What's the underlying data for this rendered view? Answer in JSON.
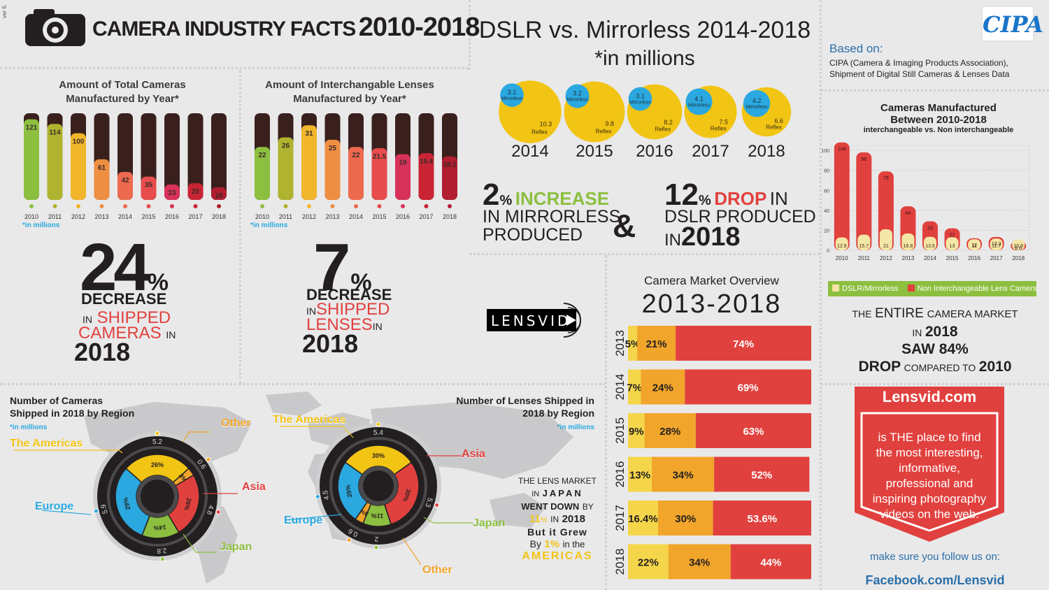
{
  "version_tag": "ver 6.",
  "header": {
    "title_a": "CAMERA INDUSTRY FACTS",
    "title_b": "2010-2018"
  },
  "colors": {
    "dark_bar": "#3a201d",
    "red": "#e1413e",
    "yellow": "#f2c414",
    "orange": "#f1a52a",
    "green": "#8cbf3f",
    "blue": "#2aa8df",
    "bg": "#e9e9ea"
  },
  "chart_data": [
    {
      "id": "total-cameras",
      "type": "bar",
      "title": "Amount of Total Cameras Manufactured by Year*",
      "note": "*in millions",
      "categories": [
        "2010",
        "2011",
        "2012",
        "2013",
        "2014",
        "2015",
        "2016",
        "2017",
        "2018"
      ],
      "values": [
        121,
        114,
        100,
        61,
        42,
        35,
        23,
        25,
        19
      ],
      "bar_colors": [
        "#8cbf3f",
        "#afb32f",
        "#f2b62c",
        "#ee8e42",
        "#ed6a4f",
        "#e74d4d",
        "#d8325a",
        "#c92434",
        "#b01e2f"
      ],
      "ylim": [
        0,
        130
      ]
    },
    {
      "id": "lenses",
      "type": "bar",
      "title": "Amount of Interchangable Lenses Manufactured by Year*",
      "note": "*in millions",
      "categories": [
        "2010",
        "2011",
        "2012",
        "2013",
        "2014",
        "2015",
        "2016",
        "2017",
        "2018"
      ],
      "values": [
        22,
        26,
        31,
        25,
        22,
        21.5,
        19,
        19.4,
        18.1
      ],
      "value_labels": [
        "22",
        "26",
        "31",
        "25",
        "22",
        "21.5",
        "19",
        "19.4",
        "18.1"
      ],
      "bar_colors": [
        "#8cbf3f",
        "#afb32f",
        "#f2b62c",
        "#ee8e42",
        "#ed6a4f",
        "#e74d4d",
        "#d8325a",
        "#c92434",
        "#b01e2f"
      ],
      "ylim": [
        0,
        36
      ]
    },
    {
      "id": "dslr-vs-mirrorless",
      "type": "bubble",
      "title": "DSLR vs. Mirrorless 2014-2018",
      "subtitle": "*in millions",
      "categories": [
        "2014",
        "2015",
        "2016",
        "2017",
        "2018"
      ],
      "series": [
        {
          "name": "Mirrorless",
          "values": [
            3.1,
            3.2,
            3.1,
            4.1,
            4.2
          ]
        },
        {
          "name": "Reflex",
          "values": [
            10.3,
            9.8,
            8.2,
            7.5,
            6.6
          ]
        }
      ]
    },
    {
      "id": "market-overview",
      "type": "bar",
      "orientation": "horizontal-stacked",
      "title_a": "Camera Market Overview",
      "title_b": "2013-2018",
      "categories": [
        "2013",
        "2014",
        "2015",
        "2016",
        "2017",
        "2018"
      ],
      "series": [
        {
          "values": [
            5,
            7,
            9,
            13,
            16.4,
            22
          ],
          "labels": [
            "5%",
            "7%",
            "9%",
            "13%",
            "16.4%",
            "22%"
          ],
          "color": "#f5d64a"
        },
        {
          "values": [
            21,
            24,
            28,
            34,
            30,
            34
          ],
          "labels": [
            "21%",
            "24%",
            "28%",
            "34%",
            "30%",
            "34%"
          ],
          "color": "#f1a52a"
        },
        {
          "values": [
            74,
            69,
            63,
            52,
            53.6,
            44
          ],
          "labels": [
            "74%",
            "69%",
            "63%",
            "52%",
            "53.6%",
            "44%"
          ],
          "color": "#e1413e"
        }
      ]
    },
    {
      "id": "interchangeable",
      "type": "bar",
      "title_a": "Cameras Manufactured",
      "title_b": "Between 2010-2018",
      "title_c": "interchangeable vs. Non interchangeable",
      "categories": [
        "2010",
        "2011",
        "2012",
        "2013",
        "2014",
        "2015",
        "2016",
        "2017",
        "2018"
      ],
      "yticks": [
        "0",
        "20",
        "40",
        "60",
        "80",
        "100"
      ],
      "ylim": [
        0,
        105
      ],
      "series": [
        {
          "name": "DSLR/Mirrorless",
          "values": [
            12.9,
            15.7,
            21,
            16.8,
            13.5,
            13,
            11,
            11.7,
            10.8
          ],
          "labels": [
            "12.9",
            "15.7",
            "21",
            "16.8",
            "13.5",
            "13",
            "11",
            "11.7",
            "10.8"
          ],
          "color": "#f4e6a6"
        },
        {
          "name": "Non Interchangeable Lens Camers",
          "values": [
            108,
            98,
            79,
            44,
            29,
            22,
            12,
            13.3,
            8.6
          ],
          "labels": [
            "108",
            "98",
            "79",
            "44",
            "29",
            "22",
            "12",
            "13.3",
            "8.6"
          ],
          "color": "#e1413e"
        }
      ]
    },
    {
      "id": "cameras-by-region",
      "type": "pie",
      "title": "Number of Cameras Shipped in 2018 by Region",
      "note": "*in millions",
      "slices": [
        {
          "label": "The Americas",
          "value": 5.2,
          "percent": "26%",
          "color": "#f2c414"
        },
        {
          "label": "Other",
          "value": 0.6,
          "percent": "3%",
          "color": "#f1a52a"
        },
        {
          "label": "Asia",
          "value": 4.8,
          "percent": "26%",
          "color": "#e1413e"
        },
        {
          "label": "Japan",
          "value": 2.8,
          "percent": "14%",
          "color": "#8cbf3f"
        },
        {
          "label": "Europe",
          "value": 5.9,
          "percent": "29%",
          "color": "#2aa8df"
        }
      ]
    },
    {
      "id": "lenses-by-region",
      "type": "pie",
      "title": "Number of Lenses Shipped in 2018 by Region",
      "note": "*in millions",
      "slices": [
        {
          "label": "The Americas",
          "value": 5.4,
          "percent": "30%",
          "color": "#f2c414"
        },
        {
          "label": "Asia",
          "value": 5.3,
          "percent": "30%",
          "color": "#e1413e"
        },
        {
          "label": "Japan",
          "value": 2,
          "percent": "11%",
          "color": "#8cbf3f"
        },
        {
          "label": "Other",
          "value": 0.6,
          "percent": "3%",
          "color": "#f1a52a"
        },
        {
          "label": "Europe",
          "value": 4.5,
          "percent": "25%",
          "color": "#2aa8df"
        }
      ]
    }
  ],
  "stat_cameras": {
    "num": "24",
    "pct": "%",
    "l1": "DECREASE",
    "in": "IN",
    "l2": "SHIPPED",
    "l3": "CAMERAS",
    "in2": "IN",
    "year": "2018"
  },
  "stat_lenses": {
    "num": "7",
    "pct": "%",
    "l1": "DECREASE",
    "in": "IN",
    "l2": "SHIPPED",
    "l3": "LENSES",
    "in2": "IN",
    "year": "2018"
  },
  "mirrorless_stat": {
    "num": "2",
    "pct": "%",
    "l1": "INCREASE",
    "l2": "IN MIRRORLESS",
    "l3": "PRODUCED"
  },
  "amp": "&",
  "dslr_stat": {
    "num": "12",
    "pct": "%",
    "l1": "DROP",
    "in": "IN",
    "l2": "DSLR PRODUCED",
    "in2": "IN",
    "year": "2018"
  },
  "lensvid_logo": "LENSVID",
  "source": {
    "logo": "CIPA",
    "heading": "Based on:",
    "line1": "CIPA (Camera & Imaging Products Association),",
    "line2": "Shipment of Digital Still Cameras & Lenses Data"
  },
  "entire_market": {
    "l1a": "THE",
    "l1b": "ENTIRE",
    "l1c": "CAMERA MARKET",
    "l2a": "IN",
    "l2b": "2018",
    "l3": "SAW 84%",
    "l4a": "DROP",
    "l4b": "COMPARED TO",
    "l4c": "2010"
  },
  "lens_market_japan": {
    "l1": "THE LENS MARKET",
    "l2a": "IN",
    "l2b": "JAPAN",
    "l3": "WENT DOWN",
    "l3b": "BY",
    "l4a": "11",
    "l4b": "%",
    "l4c": "IN",
    "l4d": "2018",
    "l5": "But it Grew",
    "l6a": "By",
    "l6b": "1%",
    "l6c": "in the",
    "l7": "AMERICAS"
  },
  "promo": {
    "site": "Lensvid.com",
    "text": "is THE place to find the most interesting, informative, professional and inspiring photography videos on the web.",
    "follow": "make sure you follow us on:",
    "facebook": "Facebook.com/Lensvid"
  }
}
